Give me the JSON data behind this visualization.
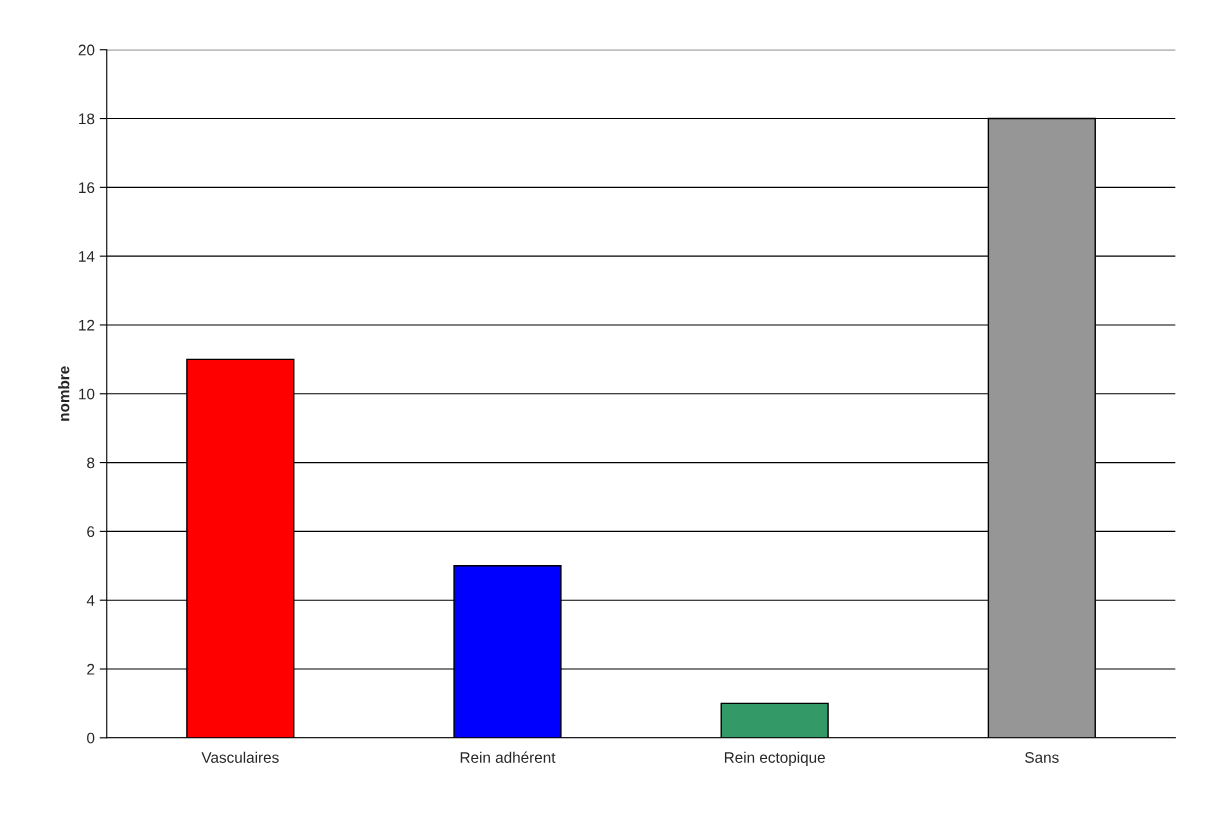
{
  "chart_data": {
    "type": "bar",
    "ylabel": "nombre",
    "categories": [
      "Vasculaires",
      "Rein adhérent",
      "Rein ectopique",
      "Sans"
    ],
    "values": [
      11,
      5,
      1,
      18
    ],
    "colors": [
      "#ff0000",
      "#0000ff",
      "#339966",
      "#969696"
    ],
    "ylim": [
      0,
      20
    ],
    "yticks": [
      0,
      2,
      4,
      6,
      8,
      10,
      12,
      14,
      16,
      18,
      20
    ],
    "grid": "y"
  }
}
